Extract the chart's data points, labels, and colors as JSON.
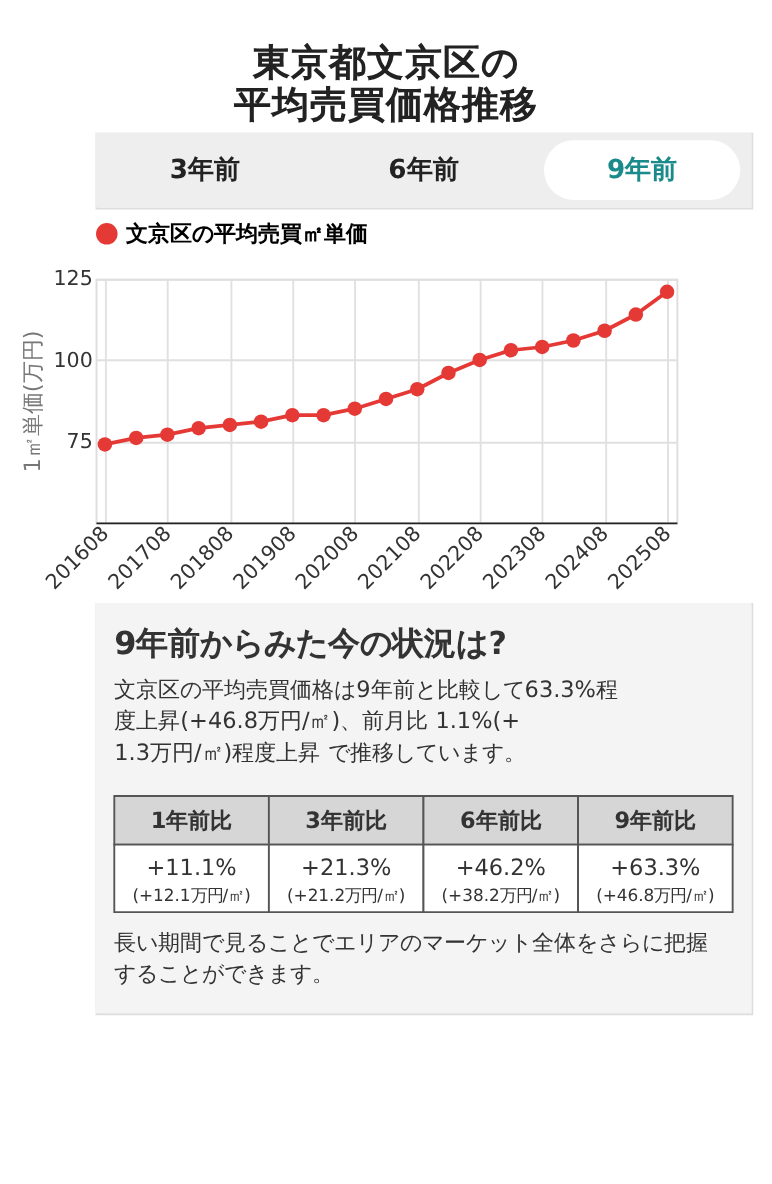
{
  "chart_data": {
    "type": "line",
    "title": "東京都文京区の平均売買価格推移",
    "categories": [
      "201608",
      null,
      "201708",
      null,
      "201808",
      null,
      "201908",
      null,
      "202008",
      null,
      "202108",
      null,
      "202208",
      null,
      "202308",
      null,
      "202408",
      null,
      "202508"
    ],
    "series": [
      {
        "name": "文京区の平均売買㎡単価",
        "color": "#e53935",
        "values": [
          74,
          76,
          77,
          79,
          80,
          81,
          83,
          83,
          85,
          88,
          91,
          96,
          100,
          103,
          104,
          106,
          109,
          114,
          121
        ]
      }
    ],
    "ylabel": "1㎡単価(万円)",
    "ylim": [
      50,
      125
    ],
    "yticks": [
      75,
      100,
      125
    ],
    "grid": true,
    "legend": "top left",
    "marker": "circle",
    "line_style": "solid",
    "annotations": [
      "3年前",
      "6年前",
      "9年前",
      "9年前からみた今の状況は?",
      "文京区の平均売買価格は9年前と比較して63.3%程度上昇(+46.8万円/㎡)、前月比 1.1%(+1.3万円/㎡)程度上昇 で推移しています。",
      "1年前比",
      "3年前比",
      "6年前比",
      "9年前比",
      "+11.1%",
      "(+12.1万円/㎡)",
      "+21.3%",
      "(+21.2万円/㎡)",
      "+46.2%",
      "(+38.2万円/㎡)",
      "+63.3%",
      "(+46.8万円/㎡)",
      "長い期間で見ることでエリアのマーケット全体をさらに把握することができます。"
    ]
  }
}
